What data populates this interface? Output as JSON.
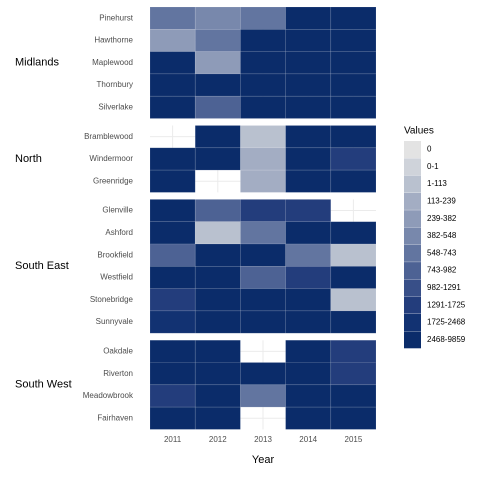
{
  "chart_data": {
    "type": "heatmap",
    "x_label": "Year",
    "legend_title": "Values",
    "categories": [
      "2011",
      "2012",
      "2013",
      "2014",
      "2015"
    ],
    "legend": [
      {
        "label": "0",
        "color": "#e3e3e3"
      },
      {
        "label": "0-1",
        "color": "#cfd3da"
      },
      {
        "label": "1-113",
        "color": "#b9c1cf"
      },
      {
        "label": "113-239",
        "color": "#a3adc3"
      },
      {
        "label": "239-382",
        "color": "#8e9bb8"
      },
      {
        "label": "382-548",
        "color": "#7888ac"
      },
      {
        "label": "548-743",
        "color": "#6275a0"
      },
      {
        "label": "743-982",
        "color": "#4d6294"
      },
      {
        "label": "982-1291",
        "color": "#384f88"
      },
      {
        "label": "1291-1725",
        "color": "#233d7c"
      },
      {
        "label": "1725-2468",
        "color": "#123272"
      },
      {
        "label": "2468-9859",
        "color": "#0b2c6a"
      }
    ],
    "panels": [
      {
        "name": "Midlands",
        "rows": [
          "Pinehurst",
          "Hawthorne",
          "Maplewood",
          "Thornbury",
          "Silverlake"
        ],
        "values": [
          [
            "548-743",
            "382-548",
            "548-743",
            "2468-9859",
            "2468-9859"
          ],
          [
            "239-382",
            "548-743",
            "2468-9859",
            "2468-9859",
            "2468-9859"
          ],
          [
            "2468-9859",
            "239-382",
            "2468-9859",
            "2468-9859",
            "2468-9859"
          ],
          [
            "2468-9859",
            "2468-9859",
            "2468-9859",
            "2468-9859",
            "2468-9859"
          ],
          [
            "2468-9859",
            "743-982",
            "2468-9859",
            "2468-9859",
            "2468-9859"
          ]
        ]
      },
      {
        "name": "North",
        "rows": [
          "Bramblewood",
          "Windermoor",
          "Greenridge"
        ],
        "values": [
          [
            null,
            "2468-9859",
            "1-113",
            "2468-9859",
            "2468-9859"
          ],
          [
            "2468-9859",
            "2468-9859",
            "113-239",
            "2468-9859",
            "1291-1725"
          ],
          [
            "2468-9859",
            null,
            "113-239",
            "2468-9859",
            "2468-9859"
          ]
        ]
      },
      {
        "name": "South East",
        "rows": [
          "Glenville",
          "Ashford",
          "Brookfield",
          "Westfield",
          "Stonebridge",
          "Sunnyvale"
        ],
        "values": [
          [
            "2468-9859",
            "743-982",
            "1291-1725",
            "1291-1725",
            null
          ],
          [
            "2468-9859",
            "1-113",
            "548-743",
            "2468-9859",
            "2468-9859"
          ],
          [
            "743-982",
            "2468-9859",
            "2468-9859",
            "548-743",
            "1-113"
          ],
          [
            "2468-9859",
            "2468-9859",
            "743-982",
            "1291-1725",
            "2468-9859"
          ],
          [
            "1291-1725",
            "2468-9859",
            "2468-9859",
            "2468-9859",
            "1-113"
          ],
          [
            "1725-2468",
            "2468-9859",
            "2468-9859",
            "2468-9859",
            "2468-9859"
          ]
        ]
      },
      {
        "name": "South West",
        "rows": [
          "Oakdale",
          "Riverton",
          "Meadowbrook",
          "Fairhaven"
        ],
        "values": [
          [
            "2468-9859",
            "2468-9859",
            null,
            "2468-9859",
            "1291-1725"
          ],
          [
            "2468-9859",
            "2468-9859",
            "2468-9859",
            "2468-9859",
            "1291-1725"
          ],
          [
            "1291-1725",
            "2468-9859",
            "548-743",
            "2468-9859",
            "2468-9859"
          ],
          [
            "2468-9859",
            "2468-9859",
            null,
            "2468-9859",
            "2468-9859"
          ]
        ]
      }
    ]
  }
}
